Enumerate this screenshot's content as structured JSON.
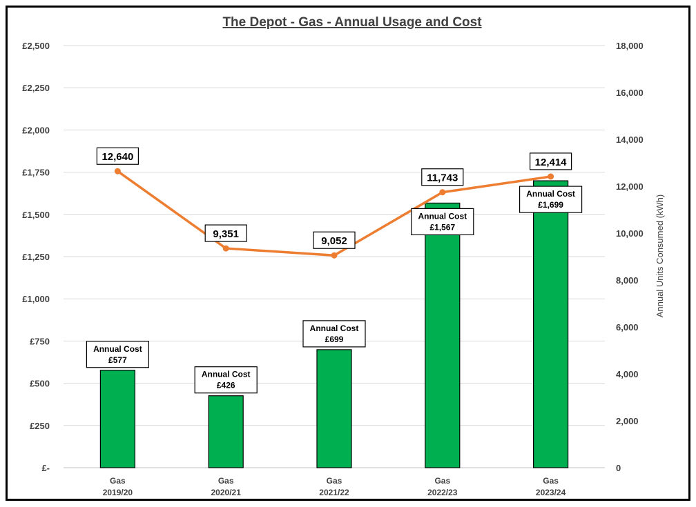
{
  "chart_data": {
    "type": "bar",
    "title": "The Depot - Gas - Annual Usage and Cost",
    "categories": [
      [
        "Gas",
        "2019/20"
      ],
      [
        "Gas",
        "2020/21"
      ],
      [
        "Gas",
        "2021/22"
      ],
      [
        "Gas",
        "2022/23"
      ],
      [
        "Gas",
        "2023/24"
      ]
    ],
    "series": [
      {
        "type": "bar",
        "axis": "left",
        "color": "#00b050",
        "values": [
          577,
          426,
          699,
          1567,
          1699
        ],
        "data_labels": [
          [
            "Annual Cost",
            "£577"
          ],
          [
            "Annual Cost",
            "£426"
          ],
          [
            "Annual Cost",
            "£699"
          ],
          [
            "Annual Cost",
            "£1,567"
          ],
          [
            "Annual Cost",
            "£1,699"
          ]
        ]
      },
      {
        "type": "line",
        "axis": "right",
        "color": "#ed7d31",
        "values": [
          12640,
          9351,
          9052,
          11743,
          12414
        ],
        "data_labels": [
          "12,640",
          "9,351",
          "9,052",
          "11,743",
          "12,414"
        ]
      }
    ],
    "y_left": {
      "label": "",
      "ylim": [
        0,
        2500
      ],
      "ticks": [
        0,
        250,
        500,
        750,
        1000,
        1250,
        1500,
        1750,
        2000,
        2250,
        2500
      ],
      "tick_labels": [
        "£-",
        "£250",
        "£500",
        "£750",
        "£1,000",
        "£1,250",
        "£1,500",
        "£1,750",
        "£2,000",
        "£2,250",
        "£2,500"
      ]
    },
    "y_right": {
      "label": "Annual Units Consumed (kWh)",
      "ylim": [
        0,
        18000
      ],
      "ticks": [
        0,
        2000,
        4000,
        6000,
        8000,
        10000,
        12000,
        14000,
        16000,
        18000
      ],
      "tick_labels": [
        "0",
        "2,000",
        "4,000",
        "6,000",
        "8,000",
        "10,000",
        "12,000",
        "14,000",
        "16,000",
        "18,000"
      ]
    },
    "grid": true,
    "legend": "none"
  }
}
